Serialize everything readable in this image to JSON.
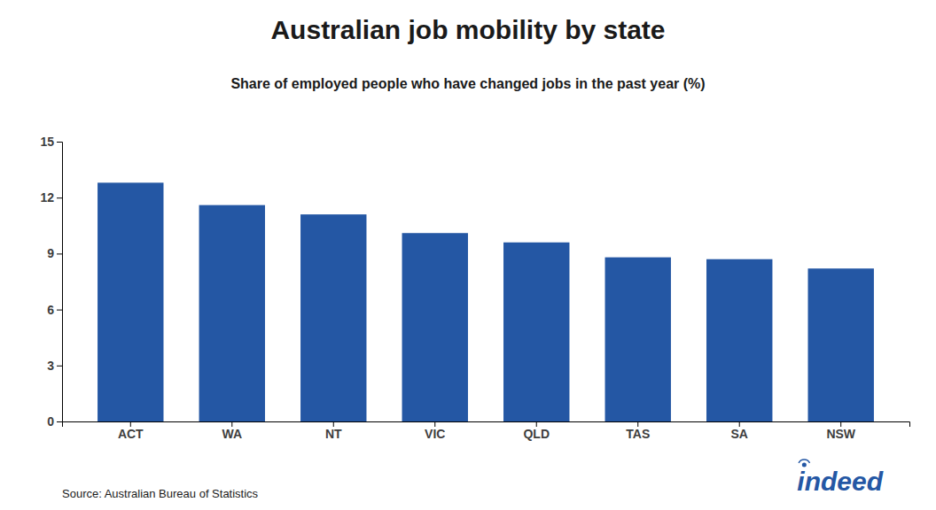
{
  "chart_data": {
    "type": "bar",
    "title": "Australian job mobility by state",
    "subtitle": "Share of employed people who have changed jobs in the past year (%)",
    "source": "Source: Australian Bureau of Statistics",
    "annotations": [
      "indeed"
    ],
    "categories": [
      "ACT",
      "WA",
      "NT",
      "VIC",
      "QLD",
      "TAS",
      "SA",
      "NSW"
    ],
    "values": [
      12.8,
      11.6,
      11.1,
      10.1,
      9.6,
      8.8,
      8.7,
      8.2
    ],
    "color": "#2457a4",
    "ylim": [
      0,
      15
    ],
    "yticks": [
      0,
      3,
      6,
      9,
      12,
      15
    ],
    "grid": false
  }
}
